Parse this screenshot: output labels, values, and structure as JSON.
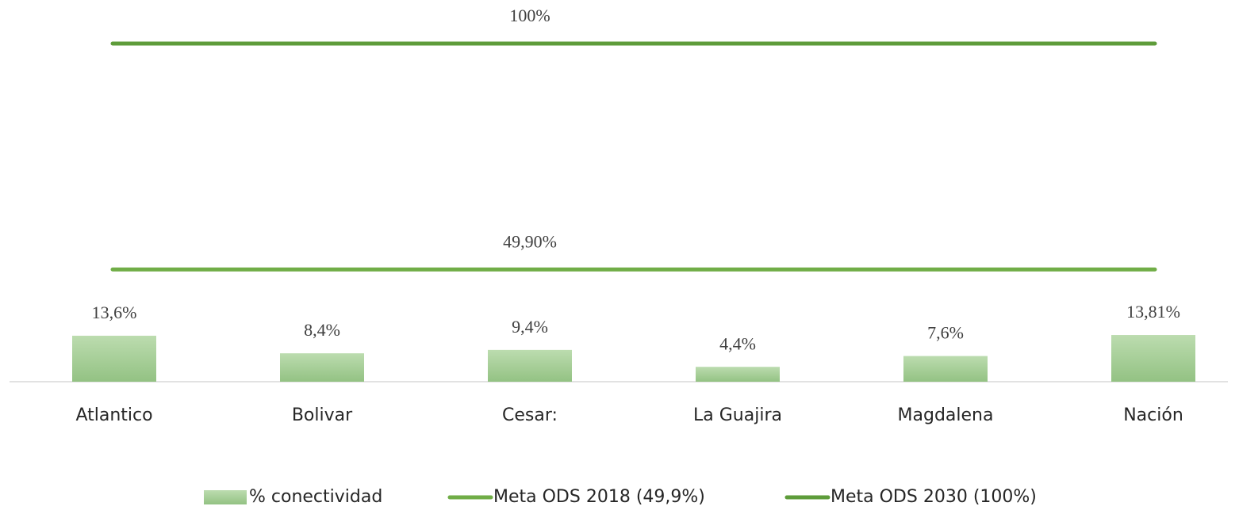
{
  "chart_data": {
    "type": "bar",
    "categories": [
      "Atlantico",
      "Bolivar",
      "Cesar:",
      "La Guajira",
      "Magdalena",
      "Nación"
    ],
    "series": [
      {
        "name": "% conectividad",
        "type": "bar",
        "color": "#a9cf9b",
        "values": [
          13.6,
          8.4,
          9.4,
          4.4,
          7.6,
          13.81
        ],
        "value_labels": [
          "13,6%",
          "8,4%",
          "9,4%",
          "4,4%",
          "7,6%",
          "13,81%"
        ]
      },
      {
        "name": "Meta ODS 2018 (49,9%)",
        "type": "line",
        "axis": "y2",
        "color": "#70ad47",
        "values": [
          49.9,
          49.9,
          49.9,
          49.9,
          49.9,
          49.9
        ],
        "value_labels": [
          null,
          null,
          "49,90%",
          null,
          null,
          null
        ]
      },
      {
        "name": "Meta ODS 2030 (100%)",
        "type": "line",
        "axis": "y2",
        "color": "#5e9c3a",
        "values": [
          100,
          100,
          100,
          100,
          100,
          100
        ],
        "value_labels": [
          null,
          null,
          "100%",
          null,
          null,
          null
        ]
      }
    ],
    "ylim": [
      0,
      100
    ],
    "y2lim": [
      25,
      100
    ],
    "legend": "bottom"
  }
}
